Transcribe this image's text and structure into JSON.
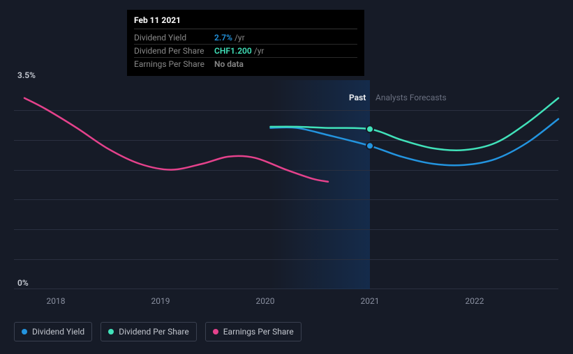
{
  "chart": {
    "type": "line",
    "background_color": "#161b27",
    "grid_color": "#2a3040",
    "y_axis": {
      "min": 0,
      "max": 3.5,
      "labels": [
        {
          "value": 3.5,
          "text": "3.5%"
        },
        {
          "value": 0,
          "text": "0%"
        }
      ]
    },
    "x_axis": {
      "min": 2017.6,
      "max": 2022.8,
      "ticks": [
        2018,
        2019,
        2020,
        2021,
        2022
      ],
      "past_band": {
        "start": 2020.05,
        "end": 2021,
        "label_past": "Past",
        "label_forecast": "Analysts Forecasts"
      }
    },
    "series": {
      "dividend_yield": {
        "name": "Dividend Yield",
        "color": "#2394df",
        "width": 2.5,
        "points": [
          [
            2020.05,
            2.7
          ],
          [
            2020.3,
            2.7
          ],
          [
            2020.6,
            2.58
          ],
          [
            2021,
            2.4
          ],
          [
            2021.3,
            2.22
          ],
          [
            2021.6,
            2.1
          ],
          [
            2021.9,
            2.08
          ],
          [
            2022.2,
            2.18
          ],
          [
            2022.5,
            2.45
          ],
          [
            2022.8,
            2.85
          ]
        ],
        "marker_at": [
          2021,
          2.4
        ]
      },
      "dividend_per_share": {
        "name": "Dividend Per Share",
        "color": "#41e2ba",
        "width": 2.5,
        "points": [
          [
            2020.05,
            2.72
          ],
          [
            2020.3,
            2.72
          ],
          [
            2020.6,
            2.7
          ],
          [
            2021,
            2.68
          ],
          [
            2021.3,
            2.5
          ],
          [
            2021.6,
            2.36
          ],
          [
            2021.9,
            2.33
          ],
          [
            2022.2,
            2.45
          ],
          [
            2022.5,
            2.78
          ],
          [
            2022.8,
            3.2
          ]
        ],
        "marker_at": [
          2021,
          2.68
        ]
      },
      "earnings_per_share": {
        "name": "Earnings Per Share",
        "color": "#e5428c",
        "width": 2.5,
        "points": [
          [
            2017.7,
            3.2
          ],
          [
            2017.9,
            3.02
          ],
          [
            2018.2,
            2.7
          ],
          [
            2018.5,
            2.35
          ],
          [
            2018.8,
            2.1
          ],
          [
            2019.1,
            2.0
          ],
          [
            2019.4,
            2.1
          ],
          [
            2019.65,
            2.22
          ],
          [
            2019.9,
            2.2
          ],
          [
            2020.2,
            2.0
          ],
          [
            2020.45,
            1.85
          ],
          [
            2020.6,
            1.8
          ]
        ]
      }
    }
  },
  "tooltip": {
    "date": "Feb 11 2021",
    "rows": [
      {
        "label": "Dividend Yield",
        "value": "2.7%",
        "suffix": "/yr",
        "color": "#2394df"
      },
      {
        "label": "Dividend Per Share",
        "value": "CHF1.200",
        "suffix": "/yr",
        "color": "#41e2ba"
      },
      {
        "label": "Earnings Per Share",
        "value": "No data",
        "suffix": "",
        "color": "#888"
      }
    ]
  },
  "legend": [
    {
      "label": "Dividend Yield",
      "color": "#2394df"
    },
    {
      "label": "Dividend Per Share",
      "color": "#41e2ba"
    },
    {
      "label": "Earnings Per Share",
      "color": "#e5428c"
    }
  ]
}
